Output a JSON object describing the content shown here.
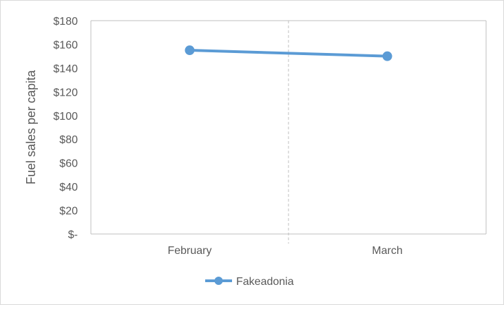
{
  "chart_data": {
    "type": "line",
    "categories": [
      "February",
      "March"
    ],
    "series": [
      {
        "name": "Fakeadonia",
        "values": [
          155,
          150
        ]
      }
    ],
    "ylabel": "Fuel sales per capita",
    "xlabel": "",
    "ylim": [
      0,
      180
    ],
    "ytick_values": [
      0,
      20,
      40,
      60,
      80,
      100,
      120,
      140,
      160,
      180
    ],
    "ytick_labels": [
      "$-",
      "$20",
      "$40",
      "$60",
      "$80",
      "$100",
      "$120",
      "$140",
      "$160",
      "$180"
    ],
    "legend_position": "bottom",
    "grid": false,
    "colors": {
      "series": "#5b9bd5",
      "axis": "#bfbfbf",
      "divider": "#bfbfbf",
      "text": "#595959"
    }
  }
}
